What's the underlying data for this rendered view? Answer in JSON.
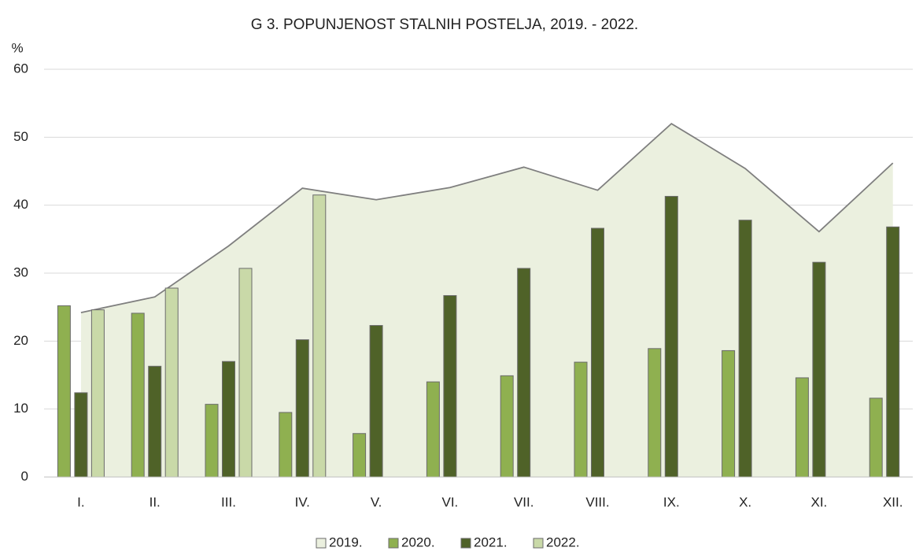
{
  "chart_data": {
    "type": "bar",
    "title": "G 3. POPUNJENOST STALNIH POSTELJA, 2019. - 2022.",
    "y_label": "%",
    "categories": [
      "I.",
      "II.",
      "III.",
      "IV.",
      "V.",
      "VI.",
      "VII.",
      "VIII.",
      "IX.",
      "X.",
      "XI.",
      "XII."
    ],
    "series": [
      {
        "name": "2019.",
        "type": "area",
        "color": "#ebf0df",
        "values": [
          24.2,
          26.5,
          34,
          42.5,
          40.8,
          42.6,
          45.6,
          42.2,
          52,
          45.4,
          36.1,
          46.2
        ]
      },
      {
        "name": "2020.",
        "type": "bar",
        "color": "#8fb050",
        "values": [
          25.2,
          24.1,
          10.7,
          9.5,
          6.4,
          14,
          14.9,
          16.9,
          18.9,
          18.6,
          14.6,
          11.6
        ]
      },
      {
        "name": "2021.",
        "type": "bar",
        "color": "#4f6228",
        "values": [
          12.4,
          16.3,
          17,
          20.2,
          22.3,
          26.7,
          30.7,
          36.6,
          41.3,
          37.8,
          31.6,
          36.8
        ]
      },
      {
        "name": "2022.",
        "type": "bar",
        "color": "#c9d9a8",
        "values": [
          24.6,
          27.8,
          30.7,
          41.5,
          null,
          null,
          null,
          null,
          null,
          null,
          null,
          null
        ]
      }
    ],
    "ylim": [
      0,
      60
    ],
    "yticks": [
      0,
      10,
      20,
      30,
      40,
      50,
      60
    ],
    "grid": true,
    "legend": "bottom"
  }
}
